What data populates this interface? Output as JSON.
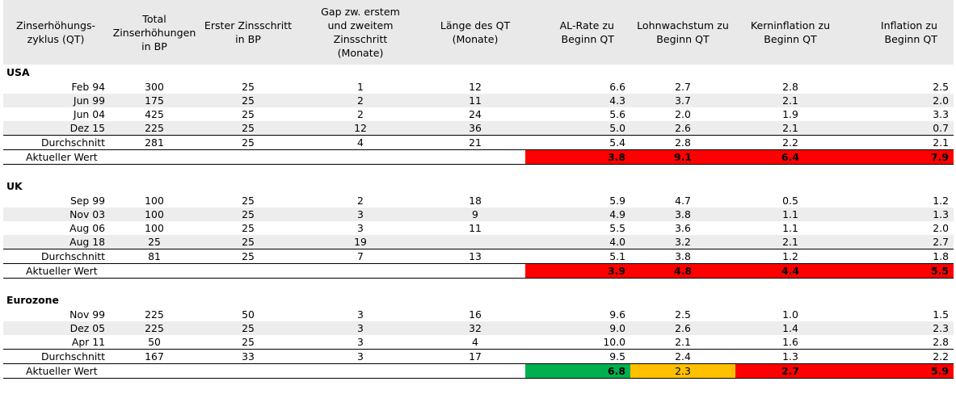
{
  "header": {
    "col0": "Zinserhöhungs-\nzyklus (QT)",
    "col1": "Total\nZinserhöhungen\nin BP",
    "col2": "Erster Zinsschritt\nin BP",
    "col3": "Gap zw. erstem\nund zweitem\nZinsschritt\n(Monate)",
    "col4": "Länge des QT\n(Monate)",
    "col5": "AL-Rate zu\nBeginn QT",
    "col6": "Lohnwachstum zu\nBeginn QT",
    "col7": "Kerninflation zu\nBeginn QT",
    "col8": "Inflation zu\nBeginn QT"
  },
  "colors": {
    "red": "#ff0000",
    "green": "#00b050",
    "orange": "#ffc000",
    "header_bg": "#e9e9e9",
    "stripe": "#ededed"
  },
  "sections": [
    {
      "name": "USA",
      "rows": [
        {
          "label": "Feb 94",
          "total": "300",
          "first": "25",
          "gap": "1",
          "length": "12",
          "al": "6.6",
          "lohn": "2.7",
          "kern": "2.8",
          "infl": "2.5"
        },
        {
          "label": "Jun 99",
          "total": "175",
          "first": "25",
          "gap": "2",
          "length": "11",
          "al": "4.3",
          "lohn": "3.7",
          "kern": "2.1",
          "infl": "2.0"
        },
        {
          "label": "Jun 04",
          "total": "425",
          "first": "25",
          "gap": "2",
          "length": "24",
          "al": "5.6",
          "lohn": "2.0",
          "kern": "1.9",
          "infl": "3.3"
        },
        {
          "label": "Dez 15",
          "total": "225",
          "first": "25",
          "gap": "12",
          "length": "36",
          "al": "5.0",
          "lohn": "2.6",
          "kern": "2.1",
          "infl": "0.7"
        }
      ],
      "average": {
        "label": "Durchschnitt",
        "total": "281",
        "first": "25",
        "gap": "4",
        "length": "21",
        "al": "5.4",
        "lohn": "2.8",
        "kern": "2.2",
        "infl": "2.1"
      },
      "current": {
        "label": "Aktueller Wert",
        "al": "3.8",
        "al_color": "red",
        "lohn": "9.1",
        "lohn_color": "red",
        "kern": "6.4",
        "kern_color": "red",
        "infl": "7.9",
        "infl_color": "red"
      }
    },
    {
      "name": "UK",
      "rows": [
        {
          "label": "Sep 99",
          "total": "100",
          "first": "25",
          "gap": "2",
          "length": "18",
          "al": "5.9",
          "lohn": "4.7",
          "kern": "0.5",
          "infl": "1.2"
        },
        {
          "label": "Nov 03",
          "total": "100",
          "first": "25",
          "gap": "3",
          "length": "9",
          "al": "4.9",
          "lohn": "3.8",
          "kern": "1.1",
          "infl": "1.3"
        },
        {
          "label": "Aug 06",
          "total": "100",
          "first": "25",
          "gap": "3",
          "length": "11",
          "al": "5.5",
          "lohn": "3.6",
          "kern": "1.1",
          "infl": "2.0"
        },
        {
          "label": "Aug 18",
          "total": "25",
          "first": "25",
          "gap": "19",
          "length": "",
          "al": "4.0",
          "lohn": "3.2",
          "kern": "2.1",
          "infl": "2.7"
        }
      ],
      "average": {
        "label": "Durchschnitt",
        "total": "81",
        "first": "25",
        "gap": "7",
        "length": "13",
        "al": "5.1",
        "lohn": "3.8",
        "kern": "1.2",
        "infl": "1.8"
      },
      "current": {
        "label": "Aktueller Wert",
        "al": "3.9",
        "al_color": "red",
        "lohn": "4.8",
        "lohn_color": "red",
        "kern": "4.4",
        "kern_color": "red",
        "infl": "5.5",
        "infl_color": "red"
      }
    },
    {
      "name": "Eurozone",
      "rows": [
        {
          "label": "Nov 99",
          "total": "225",
          "first": "50",
          "gap": "3",
          "length": "16",
          "al": "9.6",
          "lohn": "2.5",
          "kern": "1.0",
          "infl": "1.5"
        },
        {
          "label": "Dez 05",
          "total": "225",
          "first": "25",
          "gap": "3",
          "length": "32",
          "al": "9.0",
          "lohn": "2.6",
          "kern": "1.4",
          "infl": "2.3"
        },
        {
          "label": "Apr 11",
          "total": "50",
          "first": "25",
          "gap": "3",
          "length": "4",
          "al": "10.0",
          "lohn": "2.1",
          "kern": "1.6",
          "infl": "2.8"
        }
      ],
      "average": {
        "label": "Durchschnitt",
        "total": "167",
        "first": "33",
        "gap": "3",
        "length": "17",
        "al": "9.5",
        "lohn": "2.4",
        "kern": "1.3",
        "infl": "2.2"
      },
      "current": {
        "label": "Aktueller Wert",
        "al": "6.8",
        "al_color": "green",
        "lohn": "2.3",
        "lohn_color": "orange",
        "kern": "2.7",
        "kern_color": "red",
        "infl": "5.9",
        "infl_color": "red"
      }
    }
  ]
}
